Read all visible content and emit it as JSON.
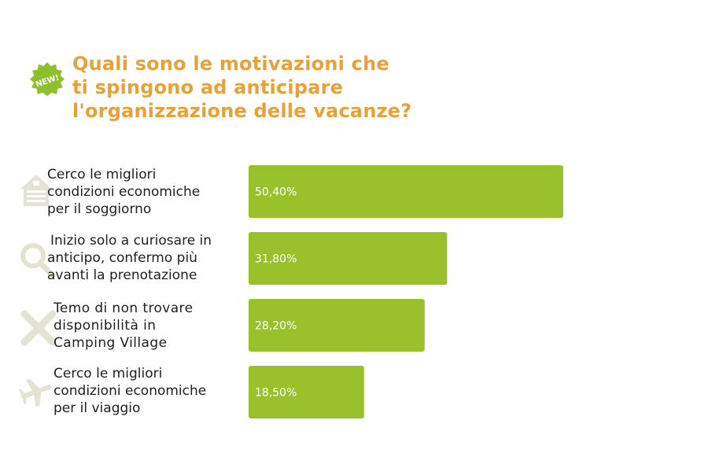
{
  "badge": {
    "text": "NEW!",
    "color": "#8DC02A"
  },
  "title": {
    "lines": [
      "Quali sono le motivazioni che",
      "ti spingono ad anticipare",
      "l'organizzazione delle vacanze?"
    ],
    "color": "#E8A13A"
  },
  "chart_data": {
    "type": "bar",
    "orientation": "horizontal",
    "title": "Quali sono le motivazioni che ti spingono ad anticipare l'organizzazione delle vacanze?",
    "categories": [
      "Cerco le migliori condizioni economiche per il soggiorno",
      "Inizio solo a curiosare in anticipo, confermo più avanti la prenotazione",
      "Temo di non trovare disponibilità in Camping Village",
      "Cerco le migliori condizioni economiche per il viaggio"
    ],
    "category_lines": [
      [
        "Cerco le migliori",
        "condizioni economiche",
        "per il soggiorno"
      ],
      [
        "Inizio solo a curiosare in",
        "anticipo, confermo più",
        "avanti la prenotazione"
      ],
      [
        "Temo di non trovare",
        "disponibilità in",
        "Camping Village"
      ],
      [
        "Cerco le migliori",
        "condizioni economiche",
        "per il viaggio"
      ]
    ],
    "values": [
      50.4,
      31.8,
      28.2,
      18.5
    ],
    "value_labels": [
      "50,40%",
      "31,80%",
      "28,20%",
      "18,50%"
    ],
    "icons": [
      "house-icon",
      "magnifier-icon",
      "x-mark-icon",
      "airplane-icon"
    ],
    "bar_color": "#98C12B",
    "icon_color": "#E6E2D3",
    "xlim": [
      0,
      50.4
    ],
    "grid": false,
    "legend": "none"
  }
}
